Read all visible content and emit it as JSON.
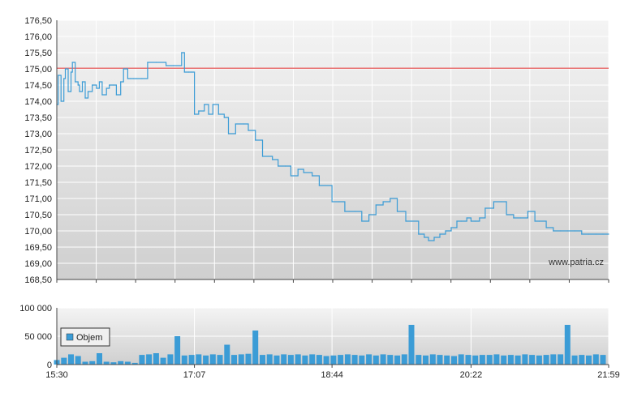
{
  "chart_data": [
    {
      "type": "line",
      "title": "",
      "ylim": [
        168.5,
        176.5
      ],
      "grid": true,
      "yticks": [
        "176,50",
        "176,00",
        "175,50",
        "175,00",
        "174,50",
        "174,00",
        "173,50",
        "173,00",
        "172,50",
        "172,00",
        "171,50",
        "171,00",
        "170,50",
        "170,00",
        "169,50",
        "169,00",
        "168,50"
      ],
      "reference_line": {
        "value": 175.02,
        "color": "#e87070"
      },
      "watermark": "www.patria.cz",
      "colors": {
        "line": "#3b9cd6",
        "grid": "#ffffff"
      },
      "series": [
        {
          "x": [
            "15:30",
            "15:31",
            "15:33",
            "15:35",
            "15:36",
            "15:38",
            "15:40",
            "15:41",
            "15:43",
            "15:45",
            "15:46",
            "15:48",
            "15:50",
            "15:52",
            "15:55",
            "15:58",
            "16:00",
            "16:02",
            "16:05",
            "16:07",
            "16:10",
            "16:12",
            "16:15",
            "16:17",
            "16:20",
            "16:22",
            "16:24",
            "16:26",
            "16:30",
            "16:34",
            "16:40",
            "16:47",
            "16:52",
            "16:58",
            "17:00",
            "17:03",
            "17:05",
            "17:07",
            "17:10",
            "17:14",
            "17:17",
            "17:20",
            "17:24",
            "17:28",
            "17:31",
            "17:36",
            "17:42",
            "17:45",
            "17:50",
            "17:55",
            "18:02",
            "18:06",
            "18:11",
            "18:15",
            "18:20",
            "18:24",
            "18:30",
            "18:35",
            "18:44",
            "18:49",
            "18:53",
            "18:56",
            "19:00",
            "19:05",
            "19:10",
            "19:15",
            "19:20",
            "19:25",
            "19:30",
            "19:36",
            "19:40",
            "19:45",
            "19:49",
            "19:52",
            "19:56",
            "20:00",
            "20:04",
            "20:08",
            "20:12",
            "20:15",
            "20:19",
            "20:22",
            "20:25",
            "20:28",
            "20:32",
            "20:38",
            "20:43",
            "20:47",
            "20:52",
            "20:57",
            "21:02",
            "21:07",
            "21:10",
            "21:15",
            "21:20",
            "21:25",
            "21:30",
            "21:35",
            "21:40",
            "21:45",
            "21:50",
            "21:55",
            "21:59"
          ],
          "y": [
            173.9,
            174.8,
            174.0,
            174.7,
            175.0,
            174.3,
            174.9,
            175.2,
            174.6,
            174.5,
            174.3,
            174.6,
            174.1,
            174.3,
            174.5,
            174.4,
            174.6,
            174.2,
            174.4,
            174.5,
            174.5,
            174.2,
            174.6,
            175.0,
            174.7,
            174.7,
            174.7,
            174.7,
            174.7,
            175.2,
            175.2,
            175.1,
            175.1,
            175.5,
            174.9,
            174.9,
            174.9,
            173.6,
            173.7,
            173.9,
            173.6,
            173.9,
            173.6,
            173.5,
            173.0,
            173.3,
            173.3,
            173.1,
            172.8,
            172.3,
            172.2,
            172.0,
            172.0,
            171.7,
            171.9,
            171.8,
            171.7,
            171.4,
            170.9,
            170.9,
            170.6,
            170.6,
            170.6,
            170.3,
            170.5,
            170.8,
            170.9,
            171.0,
            170.6,
            170.3,
            170.3,
            169.9,
            169.8,
            169.7,
            169.8,
            169.9,
            170.0,
            170.1,
            170.3,
            170.3,
            170.4,
            170.3,
            170.3,
            170.4,
            170.7,
            170.9,
            170.9,
            170.5,
            170.4,
            170.4,
            170.6,
            170.3,
            170.3,
            170.1,
            170.0,
            170.0,
            170.0,
            170.0,
            169.9,
            169.9,
            169.9,
            169.9,
            169.9
          ]
        }
      ]
    },
    {
      "type": "bar",
      "title": "",
      "ylim": [
        0,
        100000
      ],
      "yticks": [
        "100 000",
        "50 000",
        "0"
      ],
      "xticks": [
        "15:30",
        "17:07",
        "18:44",
        "20:22",
        "21:59"
      ],
      "legend": {
        "label": "Objem",
        "placement": "top-left"
      },
      "colors": {
        "bar": "#3b9cd6"
      },
      "series": [
        {
          "name": "Objem",
          "x": [
            "15:30",
            "15:35",
            "15:40",
            "15:45",
            "15:50",
            "15:55",
            "16:00",
            "16:05",
            "16:10",
            "16:15",
            "16:20",
            "16:25",
            "16:30",
            "16:35",
            "16:40",
            "16:45",
            "16:50",
            "16:55",
            "17:00",
            "17:05",
            "17:10",
            "17:15",
            "17:20",
            "17:25",
            "17:30",
            "17:35",
            "17:40",
            "17:45",
            "17:50",
            "17:55",
            "18:00",
            "18:05",
            "18:10",
            "18:15",
            "18:20",
            "18:25",
            "18:30",
            "18:35",
            "18:40",
            "18:45",
            "18:50",
            "18:55",
            "19:00",
            "19:05",
            "19:10",
            "19:15",
            "19:20",
            "19:25",
            "19:30",
            "19:35",
            "19:40",
            "19:45",
            "19:50",
            "19:55",
            "20:00",
            "20:05",
            "20:10",
            "20:15",
            "20:20",
            "20:25",
            "20:30",
            "20:35",
            "20:40",
            "20:45",
            "20:50",
            "20:55",
            "21:00",
            "21:05",
            "21:10",
            "21:15",
            "21:20",
            "21:25",
            "21:30",
            "21:35",
            "21:40",
            "21:45",
            "21:50",
            "21:55"
          ],
          "values": [
            8000,
            12000,
            18000,
            15000,
            5000,
            6000,
            20000,
            5000,
            4000,
            6000,
            5000,
            3000,
            17000,
            18000,
            20000,
            12000,
            18000,
            50000,
            16000,
            17000,
            18000,
            16000,
            18000,
            17000,
            35000,
            17000,
            18000,
            19000,
            60000,
            17000,
            18000,
            16000,
            18000,
            17000,
            18000,
            16000,
            18000,
            17000,
            15000,
            16000,
            17000,
            18000,
            17000,
            16000,
            18000,
            16000,
            18000,
            17000,
            16000,
            18000,
            70000,
            17000,
            16000,
            18000,
            17000,
            16000,
            15000,
            18000,
            17000,
            16000,
            17000,
            17000,
            18000,
            16000,
            17000,
            16000,
            18000,
            17000,
            16000,
            17000,
            18000,
            18000,
            70000,
            16000,
            17000,
            16000,
            18000,
            17000
          ]
        }
      ]
    }
  ]
}
